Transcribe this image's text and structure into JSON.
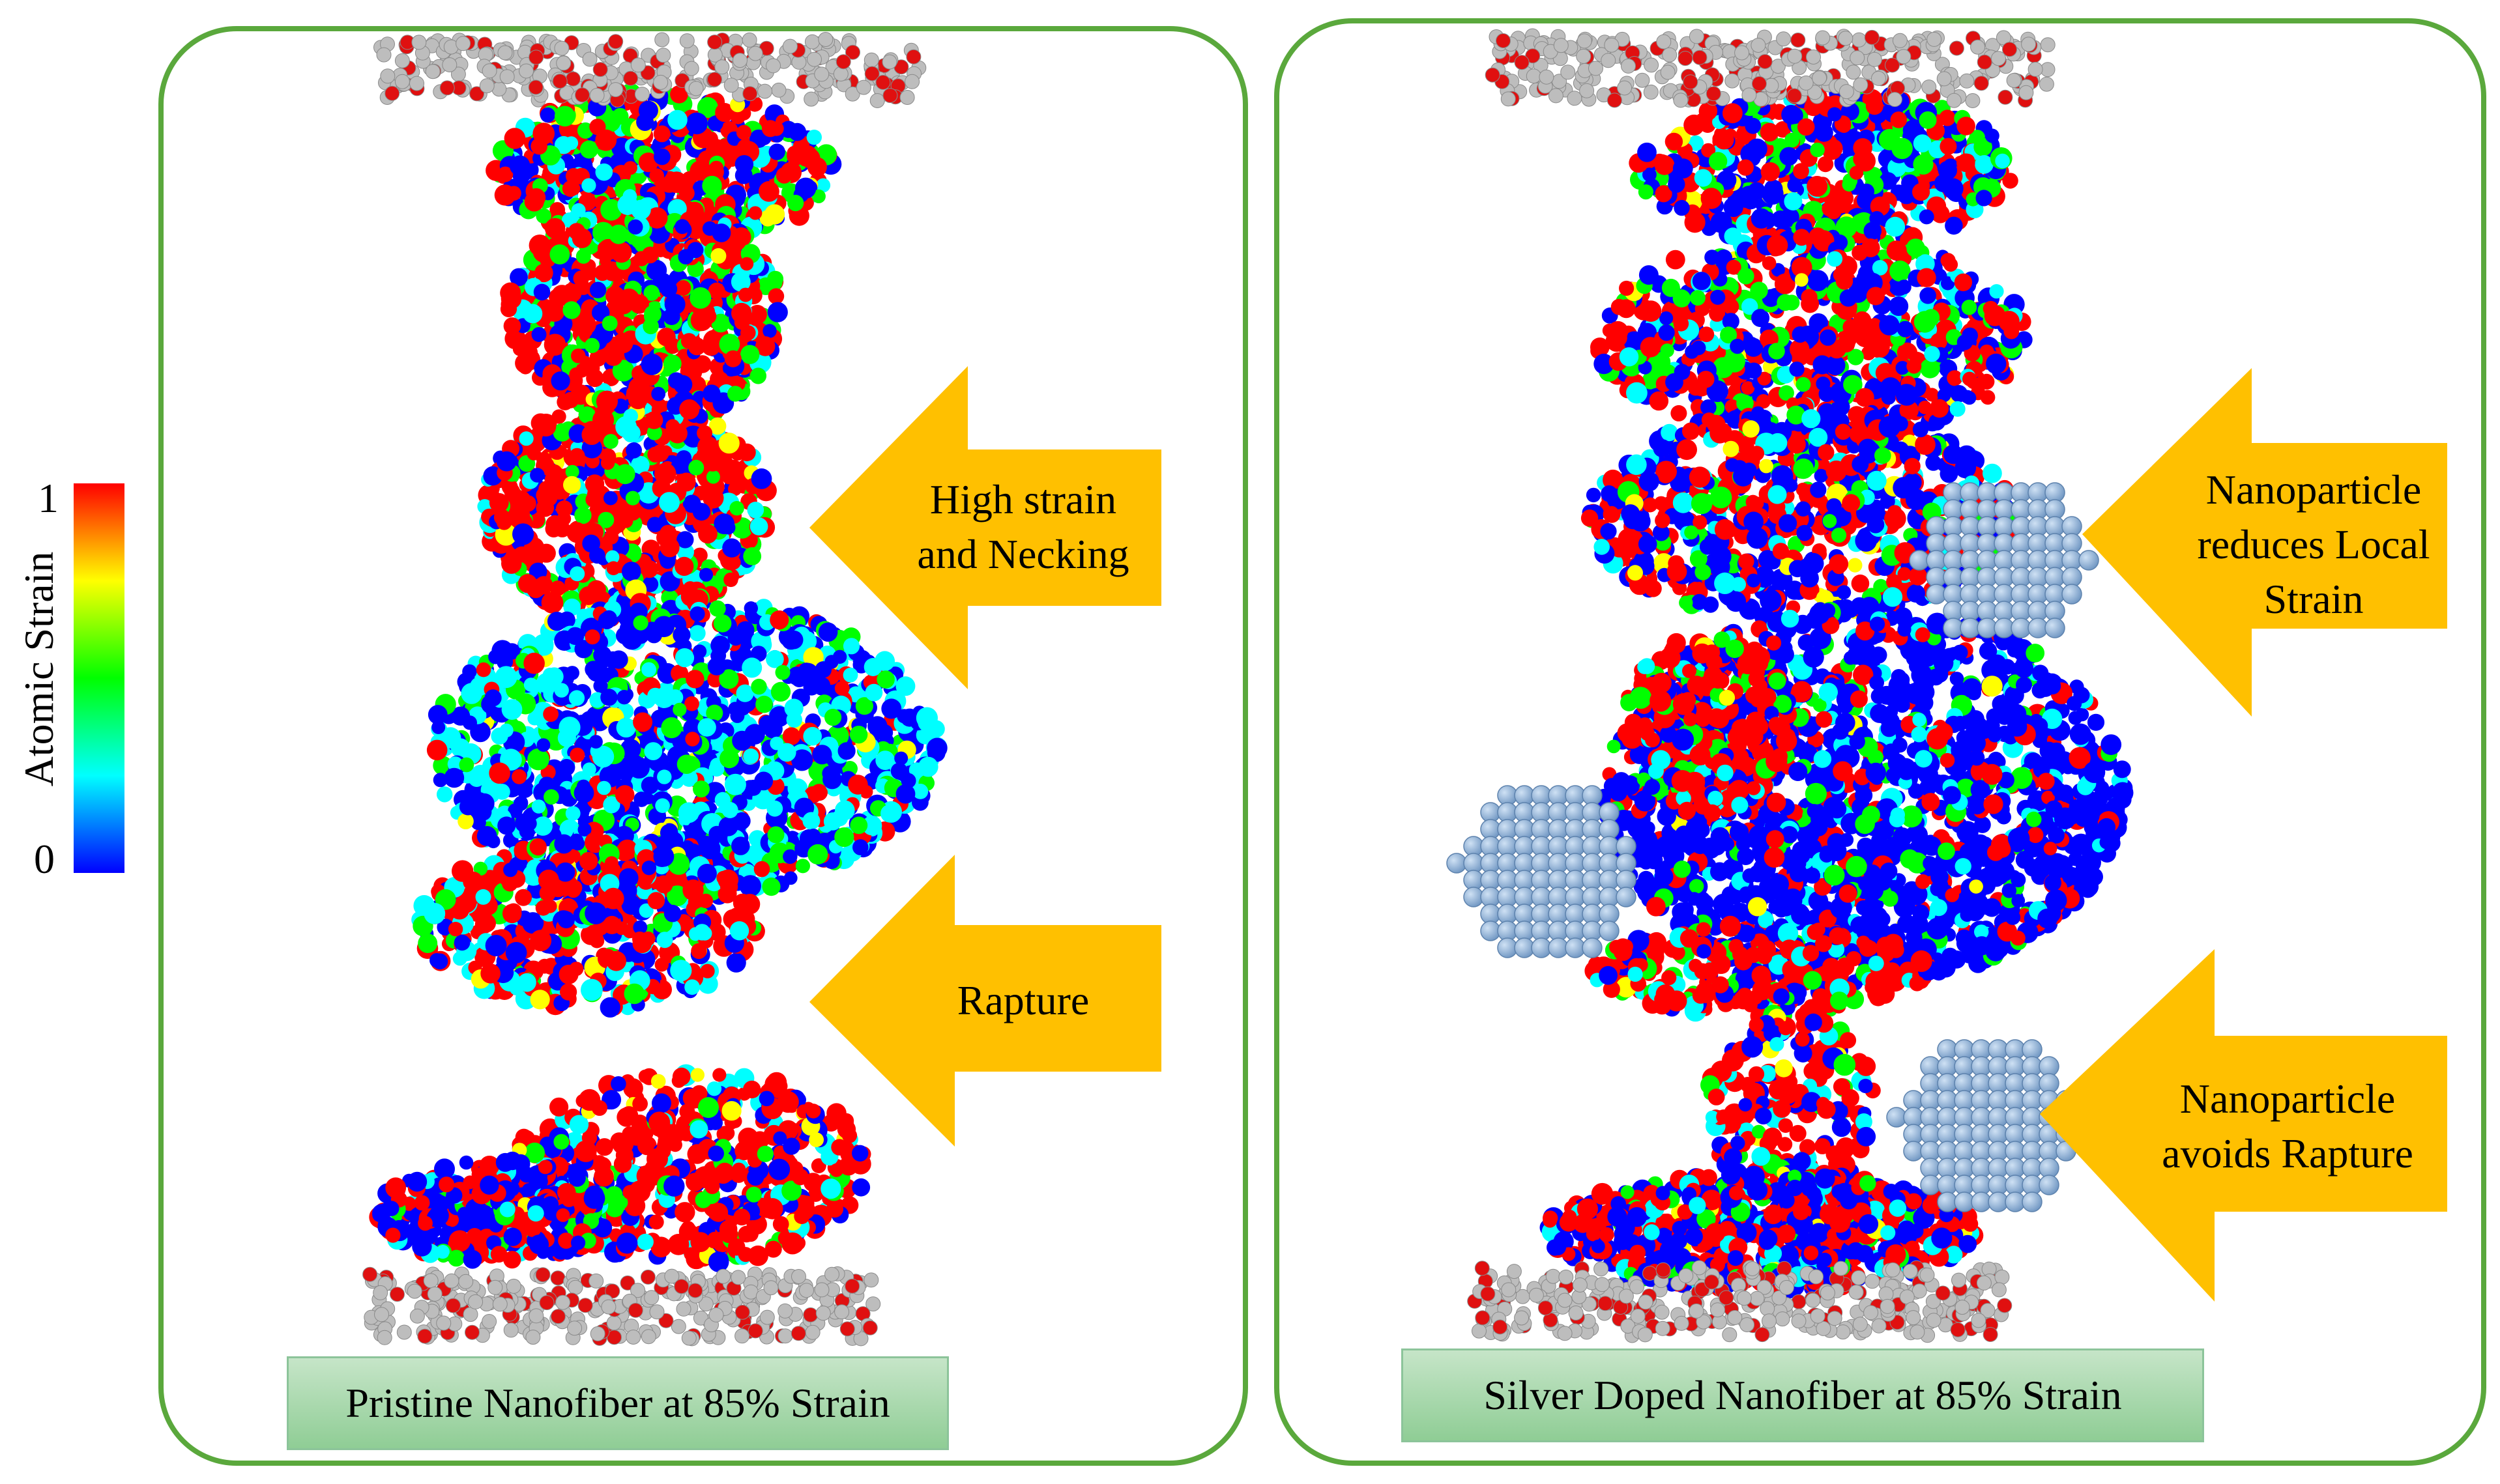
{
  "colorbar": {
    "title": "Atomic Strain",
    "max_label": "1",
    "min_label": "0",
    "colors": [
      "#0000ff",
      "#00ffff",
      "#00ff00",
      "#ffff00",
      "#ff0000"
    ]
  },
  "panels": [
    {
      "caption": "Pristine Nanofiber at 85% Strain",
      "annotations": [
        {
          "label": "High strain and Necking"
        },
        {
          "label": "Rapture"
        }
      ]
    },
    {
      "caption": "Silver Doped Nanofiber at 85% Strain",
      "annotations": [
        {
          "label": "Nanoparticle reduces Local Strain"
        },
        {
          "label": "Nanoparticle avoids Rapture"
        }
      ]
    }
  ],
  "colors": {
    "panel_border": "#5aa83c",
    "arrow_fill": "#ffc000",
    "caption_fill": "#a9d8ad",
    "nanoparticle": "#8fb4dc",
    "plate_atom": "#bdbdbd"
  }
}
